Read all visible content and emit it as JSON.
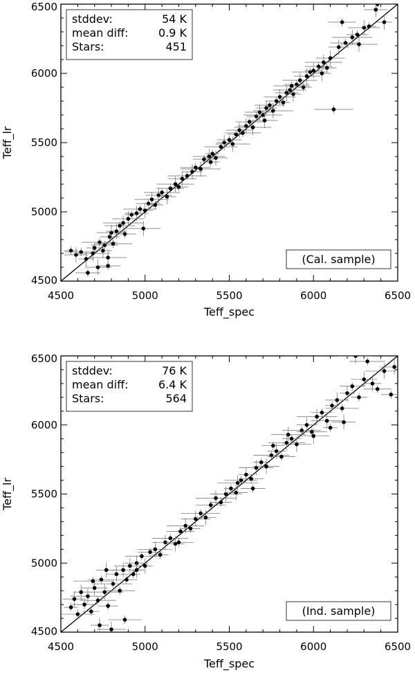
{
  "chart_data": [
    {
      "type": "scatter",
      "xlabel": "Teff_spec",
      "ylabel": "Teff_lr",
      "xlim": [
        4500,
        6500
      ],
      "ylim": [
        4500,
        6500
      ],
      "xticks": [
        "4500",
        "5000",
        "5500",
        "6000",
        "6500"
      ],
      "yticks": [
        "4500",
        "5000",
        "5500",
        "6000",
        "6500"
      ],
      "stats": [
        {
          "label": "stddev:",
          "value": "54 K"
        },
        {
          "label": "mean diff:",
          "value": "0.9 K"
        },
        {
          "label": "Stars:",
          "value": "451"
        }
      ],
      "sample_label": "(Cal. sample)",
      "reference_line": {
        "from": [
          4500,
          4500
        ],
        "to": [
          6500,
          6500
        ]
      },
      "points": [
        [
          4560,
          4720
        ],
        [
          4590,
          4690
        ],
        [
          4620,
          4710
        ],
        [
          4650,
          4660
        ],
        [
          4660,
          4560
        ],
        [
          4690,
          4700
        ],
        [
          4700,
          4740
        ],
        [
          4720,
          4600
        ],
        [
          4730,
          4780
        ],
        [
          4750,
          4720
        ],
        [
          4760,
          4760
        ],
        [
          4780,
          4670
        ],
        [
          4790,
          4820
        ],
        [
          4800,
          4850
        ],
        [
          4810,
          4770
        ],
        [
          4830,
          4860
        ],
        [
          4850,
          4900
        ],
        [
          4870,
          4920
        ],
        [
          4880,
          4840
        ],
        [
          4900,
          4950
        ],
        [
          4920,
          4980
        ],
        [
          4950,
          4990
        ],
        [
          4970,
          5020
        ],
        [
          5000,
          5010
        ],
        [
          5020,
          5060
        ],
        [
          5040,
          5090
        ],
        [
          5060,
          5050
        ],
        [
          5080,
          5120
        ],
        [
          5100,
          5140
        ],
        [
          5130,
          5110
        ],
        [
          5150,
          5170
        ],
        [
          5180,
          5200
        ],
        [
          5200,
          5180
        ],
        [
          5220,
          5240
        ],
        [
          5250,
          5260
        ],
        [
          5280,
          5290
        ],
        [
          5300,
          5320
        ],
        [
          5330,
          5310
        ],
        [
          5350,
          5380
        ],
        [
          5380,
          5400
        ],
        [
          5400,
          5420
        ],
        [
          5420,
          5390
        ],
        [
          5450,
          5470
        ],
        [
          5470,
          5500
        ],
        [
          5500,
          5520
        ],
        [
          5520,
          5490
        ],
        [
          5540,
          5560
        ],
        [
          5560,
          5590
        ],
        [
          5580,
          5570
        ],
        [
          5600,
          5620
        ],
        [
          5620,
          5650
        ],
        [
          5640,
          5610
        ],
        [
          5660,
          5690
        ],
        [
          5680,
          5720
        ],
        [
          5700,
          5700
        ],
        [
          5720,
          5750
        ],
        [
          5740,
          5770
        ],
        [
          5760,
          5730
        ],
        [
          5780,
          5800
        ],
        [
          5800,
          5830
        ],
        [
          5820,
          5790
        ],
        [
          5840,
          5860
        ],
        [
          5860,
          5880
        ],
        [
          5880,
          5850
        ],
        [
          5900,
          5920
        ],
        [
          5920,
          5950
        ],
        [
          5940,
          5900
        ],
        [
          5960,
          5980
        ],
        [
          5980,
          6010
        ],
        [
          6000,
          6020
        ],
        [
          6030,
          6050
        ],
        [
          6060,
          6080
        ],
        [
          6080,
          6040
        ],
        [
          6100,
          6110
        ],
        [
          6120,
          5740
        ],
        [
          6150,
          6190
        ],
        [
          6190,
          6220
        ],
        [
          6230,
          6260
        ],
        [
          6260,
          6280
        ],
        [
          6300,
          6330
        ],
        [
          6330,
          6340
        ],
        [
          6370,
          6460
        ],
        [
          6380,
          6500
        ],
        [
          6420,
          6370
        ],
        [
          4780,
          4610
        ],
        [
          4990,
          4880
        ],
        [
          5390,
          5360
        ],
        [
          5710,
          5660
        ],
        [
          5870,
          5910
        ],
        [
          6050,
          6000
        ],
        [
          6170,
          6370
        ],
        [
          6270,
          6210
        ]
      ]
    },
    {
      "type": "scatter",
      "xlabel": "Teff_spec",
      "ylabel": "Teff_lr",
      "xlim": [
        4500,
        6500
      ],
      "ylim": [
        4500,
        6500
      ],
      "xticks": [
        "4500",
        "5000",
        "5500",
        "6000",
        "6500"
      ],
      "yticks": [
        "4500",
        "5000",
        "5500",
        "6000",
        "6500"
      ],
      "stats": [
        {
          "label": "stddev:",
          "value": "76 K"
        },
        {
          "label": "mean diff:",
          "value": "6.4 K"
        },
        {
          "label": "Stars:",
          "value": "564"
        }
      ],
      "sample_label": "(Ind. sample)",
      "reference_line": {
        "from": [
          4500,
          4500
        ],
        "to": [
          6500,
          6500
        ]
      },
      "points": [
        [
          4560,
          4680
        ],
        [
          4580,
          4740
        ],
        [
          4600,
          4630
        ],
        [
          4620,
          4790
        ],
        [
          4640,
          4700
        ],
        [
          4660,
          4760
        ],
        [
          4680,
          4650
        ],
        [
          4700,
          4820
        ],
        [
          4720,
          4730
        ],
        [
          4730,
          4550
        ],
        [
          4740,
          4880
        ],
        [
          4760,
          4790
        ],
        [
          4780,
          4690
        ],
        [
          4800,
          4520
        ],
        [
          4810,
          4850
        ],
        [
          4830,
          4920
        ],
        [
          4850,
          4800
        ],
        [
          4870,
          4950
        ],
        [
          4890,
          4880
        ],
        [
          4910,
          4980
        ],
        [
          4930,
          4920
        ],
        [
          4950,
          5000
        ],
        [
          4980,
          5050
        ],
        [
          5000,
          4980
        ],
        [
          5030,
          5080
        ],
        [
          5060,
          5100
        ],
        [
          5090,
          5060
        ],
        [
          5120,
          5150
        ],
        [
          5150,
          5180
        ],
        [
          5180,
          5140
        ],
        [
          5210,
          5230
        ],
        [
          5240,
          5270
        ],
        [
          5270,
          5250
        ],
        [
          5300,
          5320
        ],
        [
          5330,
          5360
        ],
        [
          5360,
          5330
        ],
        [
          5390,
          5420
        ],
        [
          5420,
          5470
        ],
        [
          5450,
          5440
        ],
        [
          5480,
          5500
        ],
        [
          5510,
          5540
        ],
        [
          5540,
          5510
        ],
        [
          5570,
          5600
        ],
        [
          5600,
          5640
        ],
        [
          5630,
          5610
        ],
        [
          5660,
          5690
        ],
        [
          5690,
          5730
        ],
        [
          5720,
          5700
        ],
        [
          5750,
          5780
        ],
        [
          5780,
          5810
        ],
        [
          5810,
          5770
        ],
        [
          5840,
          5870
        ],
        [
          5870,
          5900
        ],
        [
          5900,
          5860
        ],
        [
          5930,
          5960
        ],
        [
          5960,
          6000
        ],
        [
          5990,
          5950
        ],
        [
          6020,
          6060
        ],
        [
          6050,
          6090
        ],
        [
          6080,
          6030
        ],
        [
          6110,
          6140
        ],
        [
          6140,
          6180
        ],
        [
          6170,
          6120
        ],
        [
          6200,
          6230
        ],
        [
          6230,
          6280
        ],
        [
          6250,
          6500
        ],
        [
          6270,
          6200
        ],
        [
          6300,
          6330
        ],
        [
          6320,
          6460
        ],
        [
          6350,
          6300
        ],
        [
          6380,
          6260
        ],
        [
          6420,
          6390
        ],
        [
          6460,
          6220
        ],
        [
          6480,
          6420
        ],
        [
          4690,
          4870
        ],
        [
          4770,
          4950
        ],
        [
          5200,
          5150
        ],
        [
          5550,
          5580
        ],
        [
          5760,
          5850
        ],
        [
          6000,
          5920
        ],
        [
          6100,
          5980
        ],
        [
          6180,
          6020
        ],
        [
          4880,
          4590
        ],
        [
          4950,
          4950
        ],
        [
          5640,
          5540
        ],
        [
          5850,
          5930
        ]
      ]
    }
  ]
}
